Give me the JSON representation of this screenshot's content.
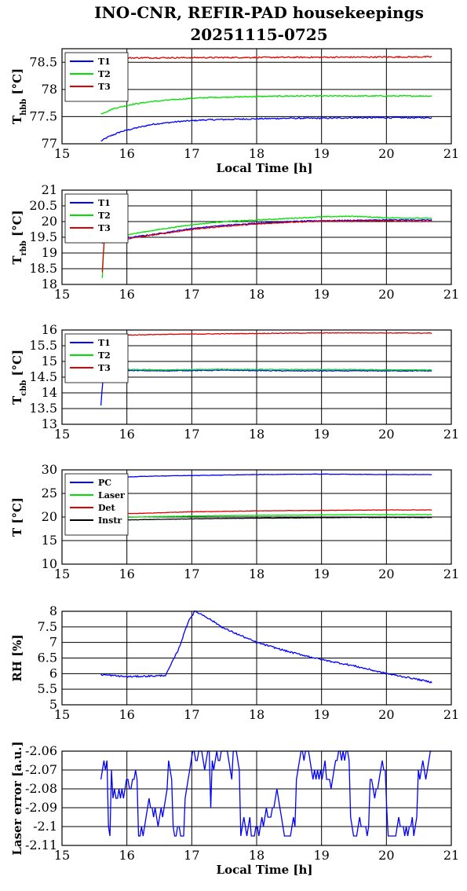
{
  "title_line1": "INO-CNR, REFIR-PAD housekeepings",
  "title_line2": "20251115-0725",
  "colors": {
    "blue": "#0000ff",
    "green": "#00e000",
    "red": "#e00000",
    "black": "#000000"
  },
  "chart_data": [
    {
      "type": "line",
      "ylabel": "T",
      "ylabel_sub": "hbb",
      "ylabel_unit": " [°C]",
      "xlabel": "Local Time [h]",
      "xlim": [
        15,
        21
      ],
      "xticks": [
        15,
        16,
        17,
        18,
        19,
        20,
        21
      ],
      "ylim": [
        77,
        78.75
      ],
      "yticks": [
        77,
        77.5,
        78,
        78.5
      ],
      "ytick_labels": [
        "77",
        "77.5",
        "78",
        "78.5"
      ],
      "grid": true,
      "legend": "top-left",
      "series": [
        {
          "name": "T1",
          "color": "blue",
          "x": [
            15.6,
            15.7,
            15.9,
            16.1,
            16.4,
            16.8,
            17.2,
            17.6,
            18.0,
            18.5,
            19.0,
            19.5,
            20.0,
            20.7
          ],
          "y": [
            77.05,
            77.12,
            77.22,
            77.28,
            77.36,
            77.41,
            77.44,
            77.45,
            77.46,
            77.47,
            77.47,
            77.48,
            77.48,
            77.48
          ],
          "noise": 0.012
        },
        {
          "name": "T2",
          "color": "green",
          "x": [
            15.6,
            15.8,
            16.1,
            16.4,
            16.8,
            17.2,
            17.6,
            18.0,
            18.5,
            19.0,
            19.5,
            20.0,
            20.7
          ],
          "y": [
            77.55,
            77.65,
            77.73,
            77.78,
            77.82,
            77.85,
            77.86,
            77.87,
            77.88,
            77.88,
            77.88,
            77.88,
            77.88
          ],
          "noise": 0.01
        },
        {
          "name": "T3",
          "color": "red",
          "x": [
            15.6,
            20.7
          ],
          "y": [
            78.58,
            78.6
          ],
          "noise": 0.012
        }
      ]
    },
    {
      "type": "line",
      "ylabel": "T",
      "ylabel_sub": "rbb",
      "ylabel_unit": " [°C]",
      "xlabel": "",
      "xlim": [
        15,
        21
      ],
      "xticks": [
        15,
        16,
        17,
        18,
        19,
        20,
        21
      ],
      "ylim": [
        18,
        21
      ],
      "yticks": [
        18,
        18.5,
        19,
        19.5,
        20,
        20.5,
        21
      ],
      "ytick_labels": [
        "18",
        "18.5",
        "19",
        "19.5",
        "20",
        "20.5",
        "21"
      ],
      "grid": true,
      "legend": "top-left",
      "series": [
        {
          "name": "T1",
          "color": "blue",
          "x": [
            15.62,
            15.65,
            15.8,
            16.0,
            16.5,
            17.0,
            17.5,
            18.0,
            18.5,
            19.0,
            19.5,
            20.0,
            20.7
          ],
          "y": [
            19.3,
            19.42,
            19.38,
            19.48,
            19.62,
            19.78,
            19.88,
            19.95,
            20.0,
            20.03,
            20.04,
            20.05,
            20.05
          ],
          "noise": 0.015
        },
        {
          "name": "T2",
          "color": "green",
          "x": [
            15.62,
            15.65,
            15.8,
            16.0,
            16.5,
            17.0,
            17.5,
            18.0,
            18.5,
            19.0,
            19.5,
            20.0,
            20.7
          ],
          "y": [
            18.2,
            19.4,
            19.48,
            19.58,
            19.75,
            19.9,
            20.0,
            20.05,
            20.1,
            20.15,
            20.17,
            20.12,
            20.1
          ],
          "noise": 0.015
        },
        {
          "name": "T3",
          "color": "red",
          "x": [
            15.62,
            15.65,
            15.8,
            16.0,
            16.5,
            17.0,
            17.5,
            18.0,
            18.5,
            19.0,
            19.5,
            20.0,
            20.7
          ],
          "y": [
            18.4,
            19.38,
            19.35,
            19.45,
            19.6,
            19.75,
            19.85,
            19.92,
            19.98,
            20.01,
            20.02,
            20.02,
            20.01
          ],
          "noise": 0.015
        }
      ]
    },
    {
      "type": "line",
      "ylabel": "T",
      "ylabel_sub": "cbb",
      "ylabel_unit": " [°C]",
      "xlabel": "",
      "xlim": [
        15,
        21
      ],
      "xticks": [
        15,
        16,
        17,
        18,
        19,
        20,
        21
      ],
      "ylim": [
        13,
        16
      ],
      "yticks": [
        13,
        13.5,
        14,
        14.5,
        15,
        15.5,
        16
      ],
      "ytick_labels": [
        "13",
        "13.5",
        "14",
        "14.5",
        "15",
        "15.5",
        "16"
      ],
      "grid": true,
      "legend": "top-left",
      "series": [
        {
          "name": "T1",
          "color": "blue",
          "x": [
            15.6,
            15.62,
            15.65,
            15.75,
            16.5,
            17.5,
            18.5,
            19.5,
            20.7
          ],
          "y": [
            13.6,
            14.2,
            14.7,
            14.72,
            14.7,
            14.72,
            14.7,
            14.7,
            14.7
          ],
          "noise": 0.012
        },
        {
          "name": "T2",
          "color": "green",
          "x": [
            15.62,
            15.65,
            15.75,
            16.5,
            17.5,
            18.5,
            19.5,
            20.7
          ],
          "y": [
            14.4,
            14.72,
            14.75,
            14.73,
            14.75,
            14.74,
            14.74,
            14.73
          ],
          "noise": 0.012
        },
        {
          "name": "T3",
          "color": "red",
          "x": [
            15.6,
            16.5,
            17.5,
            18.5,
            19.5,
            20.7
          ],
          "y": [
            15.82,
            15.86,
            15.88,
            15.9,
            15.91,
            15.9
          ],
          "noise": 0.01
        }
      ]
    },
    {
      "type": "line",
      "ylabel": "T [°C]",
      "ylabel_sub": "",
      "ylabel_unit": "",
      "xlabel": "",
      "xlim": [
        15,
        21
      ],
      "xticks": [
        15,
        16,
        17,
        18,
        19,
        20,
        21
      ],
      "ylim": [
        10,
        30
      ],
      "yticks": [
        10,
        15,
        20,
        25,
        30
      ],
      "ytick_labels": [
        "10",
        "15",
        "20",
        "25",
        "30"
      ],
      "grid": true,
      "legend": "top-left",
      "series": [
        {
          "name": "PC",
          "color": "blue",
          "x": [
            15.6,
            15.8,
            16.0,
            16.5,
            17.0,
            18.0,
            19.0,
            20.0,
            20.7
          ],
          "y": [
            28.0,
            28.3,
            28.5,
            28.7,
            28.8,
            29.0,
            29.1,
            29.0,
            29.0
          ],
          "noise": 0.04
        },
        {
          "name": "Laser",
          "color": "green",
          "x": [
            15.6,
            16.5,
            17.5,
            18.5,
            19.5,
            20.7
          ],
          "y": [
            19.8,
            20.1,
            20.3,
            20.4,
            20.5,
            20.5
          ],
          "noise": 0.04
        },
        {
          "name": "Det",
          "color": "red",
          "x": [
            15.6,
            16.0,
            16.5,
            17.0,
            18.0,
            19.0,
            20.0,
            20.7
          ],
          "y": [
            20.3,
            20.7,
            20.9,
            21.1,
            21.3,
            21.4,
            21.5,
            21.5
          ],
          "noise": 0.04
        },
        {
          "name": "Instr",
          "color": "black",
          "x": [
            15.6,
            16.5,
            17.5,
            18.5,
            19.5,
            20.7
          ],
          "y": [
            19.3,
            19.5,
            19.7,
            19.8,
            19.9,
            19.9
          ],
          "noise": 0.04
        }
      ]
    },
    {
      "type": "line",
      "ylabel": "RH [%]",
      "ylabel_sub": "",
      "ylabel_unit": "",
      "xlabel": "",
      "xlim": [
        15,
        21
      ],
      "xticks": [
        15,
        16,
        17,
        18,
        19,
        20,
        21
      ],
      "ylim": [
        5,
        8
      ],
      "yticks": [
        5,
        5.5,
        6,
        6.5,
        7,
        7.5,
        8
      ],
      "ytick_labels": [
        "5",
        "5.5",
        "6",
        "6.5",
        "7",
        "7.5",
        "8"
      ],
      "grid": true,
      "legend": "none",
      "series": [
        {
          "name": "",
          "color": "blue",
          "x": [
            15.6,
            16.0,
            16.5,
            16.6,
            16.8,
            16.95,
            17.05,
            17.2,
            17.5,
            18.0,
            18.5,
            19.0,
            19.5,
            20.0,
            20.4,
            20.7
          ],
          "y": [
            5.97,
            5.9,
            5.93,
            5.95,
            6.8,
            7.7,
            8.0,
            7.85,
            7.45,
            7.0,
            6.7,
            6.45,
            6.25,
            6.0,
            5.85,
            5.72
          ],
          "noise": 0.025
        }
      ]
    },
    {
      "type": "line",
      "ylabel": "Laser error [a.u.]",
      "ylabel_sub": "",
      "ylabel_unit": "",
      "xlabel": "Local Time [h]",
      "xlim": [
        15,
        21
      ],
      "xticks": [
        15,
        16,
        17,
        18,
        19,
        20,
        21
      ],
      "ylim": [
        -2.11,
        -2.06
      ],
      "yticks": [
        -2.11,
        -2.1,
        -2.09,
        -2.08,
        -2.07,
        -2.06
      ],
      "ytick_labels": [
        "-2.11",
        "-2.1",
        "-2.09",
        "-2.08",
        "-2.07",
        "-2.06"
      ],
      "grid": true,
      "legend": "none",
      "series": [
        {
          "name": "",
          "color": "blue",
          "x": [
            15.6,
            20.7
          ],
          "y": [
            -2.085,
            -2.085
          ],
          "quantized": true,
          "step": 0.005,
          "range": [
            -2.105,
            -2.06
          ]
        }
      ]
    }
  ]
}
